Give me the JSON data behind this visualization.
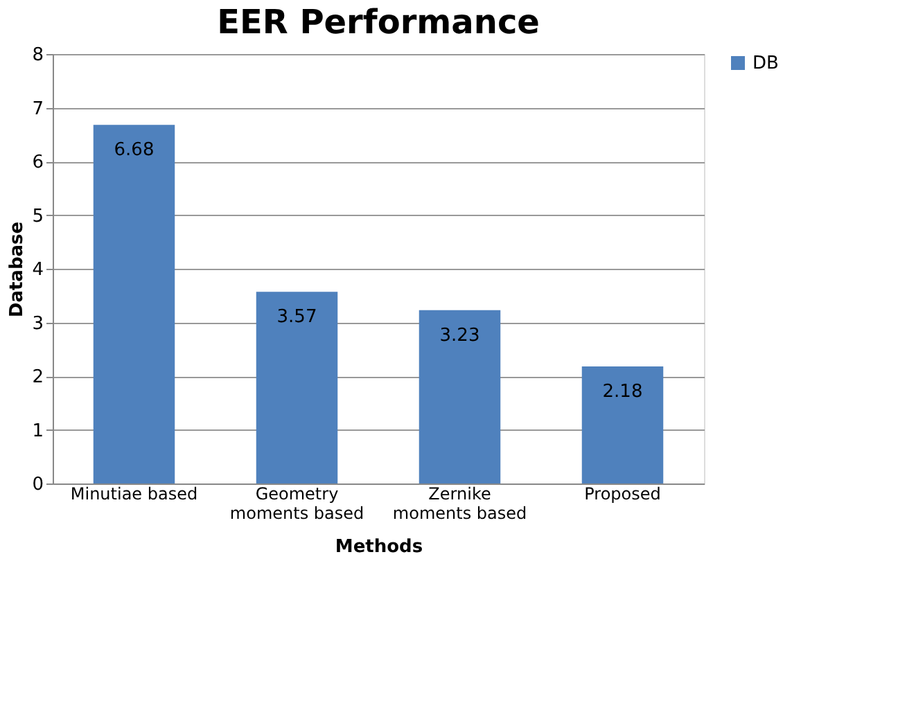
{
  "chart_data": {
    "type": "bar",
    "title": "EER Performance",
    "xlabel": "Methods",
    "ylabel": "Database",
    "categories": [
      "Minutiae based",
      "Geometry moments based",
      "Zernike moments based",
      "Proposed"
    ],
    "series": [
      {
        "name": "DB",
        "color": "#4f81bd",
        "values": [
          6.68,
          3.57,
          3.23,
          2.18
        ]
      }
    ],
    "ylim": [
      0,
      8
    ],
    "yticks": [
      0,
      1,
      2,
      3,
      4,
      5,
      6,
      7,
      8
    ],
    "grid": "y",
    "legend": "right",
    "data_labels": true
  }
}
